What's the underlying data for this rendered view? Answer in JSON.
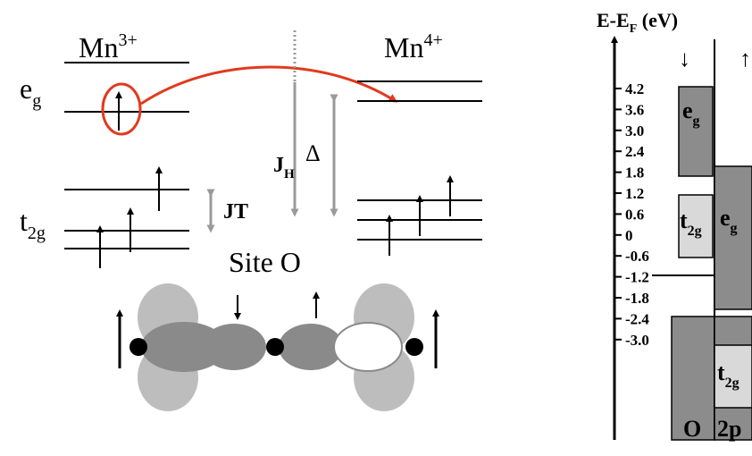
{
  "left_diagram": {
    "mn3_base": "Mn",
    "mn3_charge": "3+",
    "mn4_base": "Mn",
    "mn4_charge": "4+",
    "eg_base": "e",
    "eg_sub": "g",
    "t2g_base": "t",
    "t2g_sub": "2g",
    "jh_base": "J",
    "jh_sub": "H",
    "delta": "Δ",
    "jt": "JT",
    "site_o": "Site O",
    "colors": {
      "hop_arrow": "#e03a1e",
      "lobe_light": "#bdbdbd",
      "lobe_dark": "#8a8a8a",
      "gray_arrow": "#9a9a9a"
    }
  },
  "right_diagram": {
    "axis_label_main": "E-E",
    "axis_label_sub": "F",
    "axis_label_unit": " (eV)",
    "spin_down": "↓",
    "spin_up": "↑",
    "ticks": [
      "4.2",
      "3.6",
      "3.0",
      "2.4",
      "1.8",
      "1.2",
      "0.6",
      "0",
      "-0.6",
      "-1.2",
      "-1.8",
      "-2.4",
      "-3.0"
    ],
    "band_eg_down_base": "e",
    "band_eg_down_sub": "g",
    "band_t2g_down_base": "t",
    "band_t2g_down_sub": "2g",
    "band_eg_up_base": "e",
    "band_eg_up_sub": "g",
    "band_t2g_up_base": "t",
    "band_t2g_up_sub": "2g",
    "band_o": "O",
    "band_2p": "2p",
    "colors": {
      "band_dark": "#8c8c8c",
      "band_light": "#d9d9d9",
      "outline": "#000000"
    }
  }
}
